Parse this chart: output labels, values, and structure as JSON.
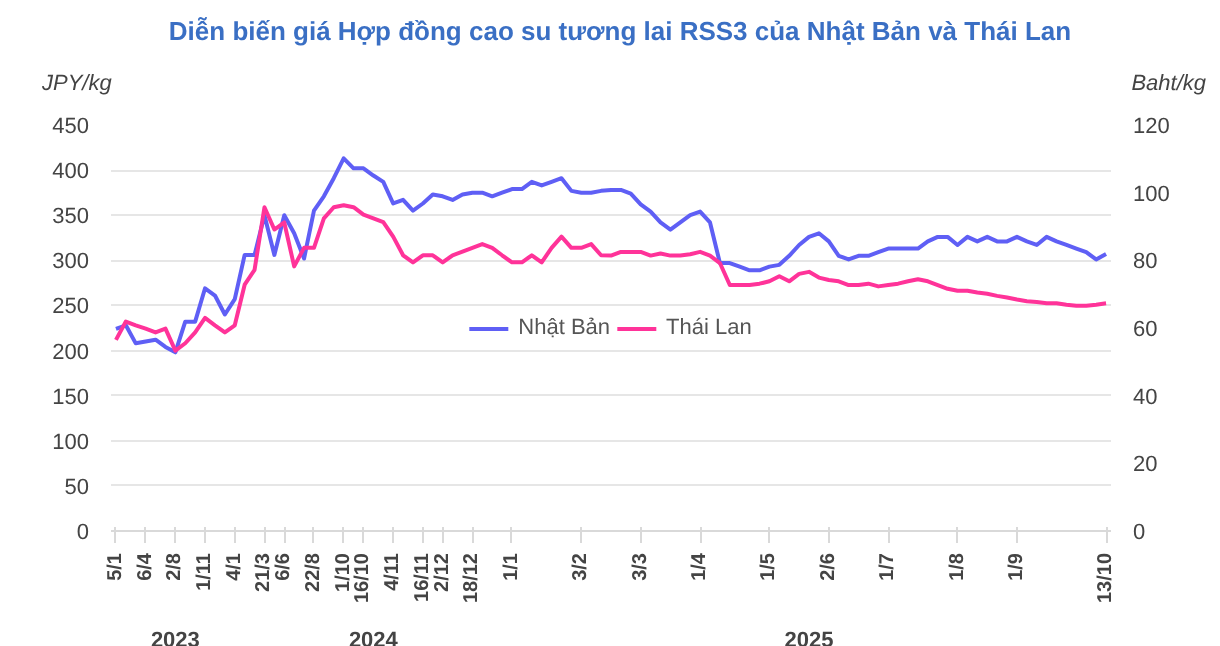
{
  "chart_data": {
    "type": "line",
    "title": "Diễn biến giá Hợp đồng cao su tương lai RSS3 của Nhật Bản và Thái Lan",
    "ylabel": "JPY/kg",
    "y2label": "Baht/kg",
    "categories": [
      "5/1",
      null,
      null,
      "6/4",
      null,
      null,
      "2/8",
      null,
      null,
      "1/11",
      null,
      null,
      "4/1",
      null,
      null,
      "21/3",
      null,
      "6/6",
      null,
      null,
      "22/8",
      null,
      null,
      "1/10",
      null,
      "16/10",
      null,
      null,
      "4/11",
      null,
      null,
      "16/11",
      null,
      "2/12",
      null,
      null,
      "18/12",
      null,
      null,
      null,
      "1/1",
      null,
      null,
      null,
      null,
      null,
      null,
      "3/2",
      null,
      null,
      null,
      null,
      null,
      "3/3",
      null,
      null,
      null,
      null,
      null,
      "1/4",
      null,
      null,
      null,
      null,
      null,
      null,
      "1/5",
      null,
      null,
      null,
      null,
      null,
      "2/6",
      null,
      null,
      null,
      null,
      null,
      "1/7",
      null,
      null,
      null,
      null,
      null,
      null,
      "1/8",
      null,
      null,
      null,
      null,
      null,
      "1/9",
      null,
      null,
      null,
      null,
      null,
      null,
      null,
      null,
      "13/10"
    ],
    "series": [
      {
        "name": "Nhật Bản",
        "color": "#5f5ff5",
        "values": [
          224,
          228,
          208,
          210,
          212,
          204,
          198,
          232,
          232,
          269,
          261,
          240,
          257,
          306,
          306,
          350,
          306,
          350,
          330,
          302,
          355,
          371,
          391,
          413,
          402,
          402,
          394,
          387,
          363,
          367,
          355,
          363,
          373,
          371,
          367,
          373,
          375,
          375,
          371,
          375,
          379,
          379,
          387,
          383,
          387,
          391,
          377,
          375,
          375,
          377,
          378,
          378,
          374,
          362,
          354,
          342,
          334,
          342,
          350,
          354,
          342,
          297,
          297,
          293,
          289,
          289,
          293,
          295,
          305,
          317,
          326,
          330,
          321,
          305,
          301,
          305,
          305,
          309,
          313,
          313,
          313,
          313,
          321,
          326,
          326,
          317,
          326,
          321,
          326,
          321,
          321,
          326,
          321,
          317,
          326,
          321,
          317,
          313,
          309,
          301,
          307
        ]
      },
      {
        "name": "Thái Lan",
        "color": "#ff3399",
        "axis": "y2",
        "values": [
          56.5,
          61.9,
          60.8,
          59.8,
          58.7,
          59.8,
          53.3,
          55.5,
          58.7,
          63.0,
          60.8,
          58.7,
          60.8,
          72.8,
          77.2,
          95.7,
          89.1,
          91.2,
          78.2,
          83.7,
          83.7,
          92.4,
          95.7,
          96.3,
          95.7,
          93.5,
          92.4,
          91.3,
          87.0,
          81.5,
          79.4,
          81.5,
          81.5,
          79.4,
          81.5,
          82.6,
          83.7,
          84.8,
          83.7,
          81.5,
          79.4,
          79.4,
          81.5,
          79.4,
          83.7,
          87.0,
          83.7,
          83.7,
          84.8,
          81.5,
          81.4,
          82.5,
          82.5,
          82.5,
          81.4,
          82.0,
          81.4,
          81.4,
          81.8,
          82.5,
          81.4,
          79.2,
          72.7,
          72.7,
          72.7,
          73.1,
          73.8,
          75.3,
          73.8,
          76.0,
          76.6,
          74.9,
          74.2,
          73.8,
          72.7,
          72.7,
          73.1,
          72.3,
          72.7,
          73.1,
          73.8,
          74.4,
          73.8,
          72.7,
          71.6,
          71.0,
          71.0,
          70.5,
          70.1,
          69.5,
          69.0,
          68.4,
          67.9,
          67.7,
          67.3,
          67.3,
          66.9,
          66.6,
          66.6,
          66.9,
          67.3
        ]
      }
    ],
    "ylim": [
      0,
      450
    ],
    "yticks": [
      0,
      50,
      100,
      150,
      200,
      250,
      300,
      350,
      400,
      450
    ],
    "y2lim": [
      0,
      120
    ],
    "y2ticks": [
      0,
      20,
      40,
      60,
      80,
      100,
      120
    ],
    "annotations": [
      "2023",
      "2024",
      "2025"
    ],
    "grid": "y",
    "legend": "center",
    "marker": "none",
    "line_style": "solid"
  }
}
